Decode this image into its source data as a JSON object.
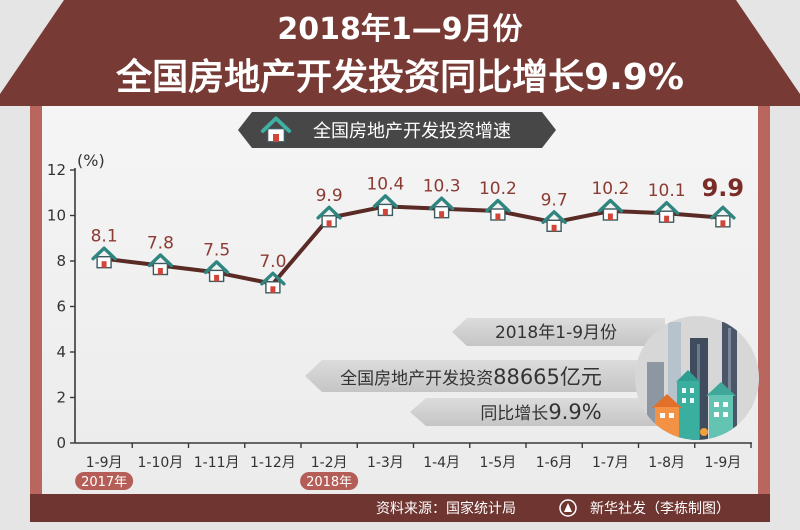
{
  "chart_data": {
    "type": "line",
    "title": [
      "2018年1—9月份",
      "全国房地产开发投资同比增长9.9%"
    ],
    "ylabel": "(%)",
    "ylim": [
      0,
      12
    ],
    "yticks": [
      0,
      2,
      4,
      6,
      8,
      10,
      12
    ],
    "categories": [
      "1-9月",
      "1-10月",
      "1-11月",
      "1-12月",
      "1-2月",
      "1-3月",
      "1-4月",
      "1-5月",
      "1-6月",
      "1-7月",
      "1-8月",
      "1-9月"
    ],
    "year_labels": [
      {
        "label": "2017年",
        "category_index": 0
      },
      {
        "label": "2018年",
        "category_index": 4
      }
    ],
    "series": [
      {
        "name": "全国房地产开发投资增速",
        "values": [
          8.1,
          7.8,
          7.5,
          7.0,
          9.9,
          10.4,
          10.3,
          10.2,
          9.7,
          10.2,
          10.1,
          9.9
        ],
        "labels": [
          "8.1",
          "7.8",
          "7.5",
          "7.0",
          "9.9",
          "10.4",
          "10.3",
          "10.2",
          "9.7",
          "10.2",
          "10.1",
          "9.9"
        ],
        "highlight_index": 11
      }
    ],
    "grid": false,
    "legend": "top-center",
    "marker": "house-icon"
  },
  "summary": {
    "period": "2018年1-9月份",
    "investment_label": "全国房地产开发投资",
    "investment_value": "88665亿元",
    "growth_label": "同比增长",
    "growth_value": "9.9%"
  },
  "footer": {
    "source": "资料来源：国家统计局",
    "credit": "新华社发（李栋制图）"
  },
  "icons": {
    "legend": "house-icon",
    "marker": "house-icon",
    "illustration": "city-buildings-illustration",
    "logo": "xinhua-logo-icon"
  },
  "colors": {
    "roof": "#773a34",
    "wall": "#b9665f",
    "footer_band": "#6f3530",
    "legend_ribbon": "#474747",
    "line": "#5a2a25",
    "data_label": "#8b3b33",
    "data_label_highlight": "#7a2c26",
    "year_badge": "#b55e57",
    "marker_roof": "#2f8680",
    "marker_door": "#d2463a"
  }
}
